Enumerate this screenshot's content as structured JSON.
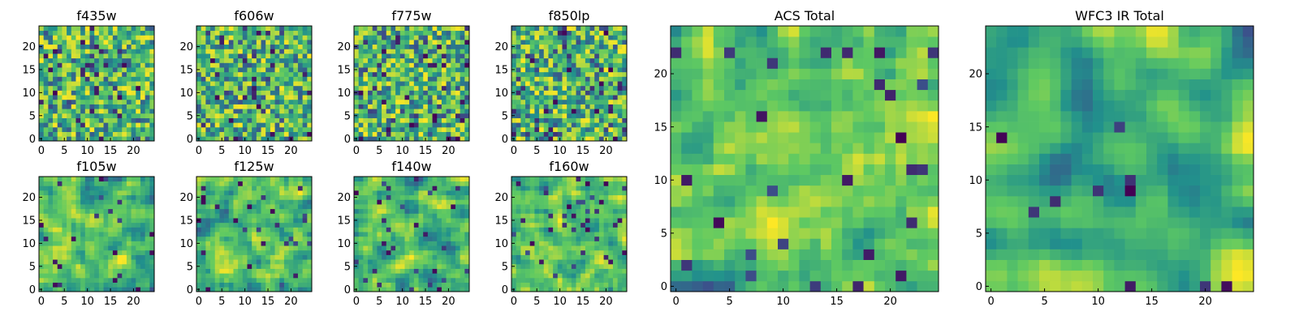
{
  "figure": {
    "colormap": "viridis",
    "colors": [
      "#440154",
      "#3b528b",
      "#21918c",
      "#5ec962",
      "#fde725"
    ]
  },
  "chart_data": [
    {
      "type": "heatmap",
      "title": "f435w",
      "grid_size": 25,
      "seed": 11,
      "smooth": 0,
      "darks": 0.06,
      "xticks": [
        "0",
        "5",
        "10",
        "15",
        "20"
      ],
      "yticks": [
        "0",
        "5",
        "10",
        "15",
        "20"
      ]
    },
    {
      "type": "heatmap",
      "title": "f606w",
      "grid_size": 25,
      "seed": 23,
      "smooth": 0,
      "darks": 0.05,
      "xticks": [
        "0",
        "5",
        "10",
        "15",
        "20"
      ],
      "yticks": [
        "0",
        "5",
        "10",
        "15",
        "20"
      ]
    },
    {
      "type": "heatmap",
      "title": "f775w",
      "grid_size": 25,
      "seed": 37,
      "smooth": 0,
      "darks": 0.07,
      "xticks": [
        "0",
        "5",
        "10",
        "15",
        "20"
      ],
      "yticks": [
        "0",
        "5",
        "10",
        "15",
        "20"
      ]
    },
    {
      "type": "heatmap",
      "title": "f850lp",
      "grid_size": 25,
      "seed": 41,
      "smooth": 0,
      "darks": 0.08,
      "xticks": [
        "0",
        "5",
        "10",
        "15",
        "20"
      ],
      "yticks": [
        "0",
        "5",
        "10",
        "15",
        "20"
      ]
    },
    {
      "type": "heatmap",
      "title": "f105w",
      "grid_size": 25,
      "seed": 53,
      "smooth": 1,
      "darks": 0.04,
      "xticks": [
        "0",
        "5",
        "10",
        "15",
        "20"
      ],
      "yticks": [
        "0",
        "5",
        "10",
        "15",
        "20"
      ]
    },
    {
      "type": "heatmap",
      "title": "f125w",
      "grid_size": 25,
      "seed": 67,
      "smooth": 1,
      "darks": 0.04,
      "xticks": [
        "0",
        "5",
        "10",
        "15",
        "20"
      ],
      "yticks": [
        "0",
        "5",
        "10",
        "15",
        "20"
      ]
    },
    {
      "type": "heatmap",
      "title": "f140w",
      "grid_size": 25,
      "seed": 71,
      "smooth": 1,
      "darks": 0.05,
      "xticks": [
        "0",
        "5",
        "10",
        "15",
        "20"
      ],
      "yticks": [
        "0",
        "5",
        "10",
        "15",
        "20"
      ]
    },
    {
      "type": "heatmap",
      "title": "f160w",
      "grid_size": 25,
      "seed": 89,
      "smooth": 1,
      "darks": 0.05,
      "xticks": [
        "0",
        "5",
        "10",
        "15",
        "20"
      ],
      "yticks": [
        "0",
        "5",
        "10",
        "15",
        "20"
      ]
    },
    {
      "type": "heatmap",
      "title": "ACS Total",
      "grid_size": 25,
      "seed": 97,
      "smooth": 1,
      "darks": 0.03,
      "xticks": [
        "0",
        "5",
        "10",
        "15",
        "20"
      ],
      "yticks": [
        "0",
        "5",
        "10",
        "15",
        "20"
      ]
    },
    {
      "type": "heatmap",
      "title": "WFC3 IR Total",
      "grid_size": 25,
      "seed": 103,
      "smooth": 2,
      "darks": 0.03,
      "xticks": [
        "0",
        "5",
        "10",
        "15",
        "20"
      ],
      "yticks": [
        "0",
        "5",
        "10",
        "15",
        "20"
      ]
    }
  ]
}
